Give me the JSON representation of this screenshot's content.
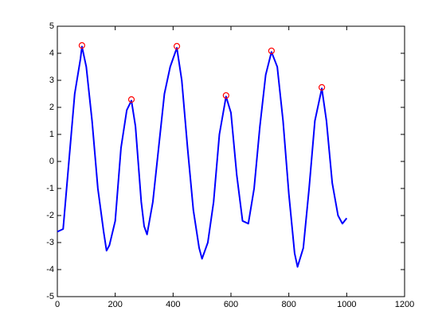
{
  "chart_data": {
    "type": "line",
    "xlim": [
      0,
      1200
    ],
    "xticks": [
      0,
      200,
      400,
      600,
      800,
      1000,
      1200
    ],
    "ylim": [
      -5,
      5
    ],
    "yticks": [
      -5,
      -4,
      -3,
      -2,
      -1,
      0,
      1,
      2,
      3,
      4,
      5
    ],
    "series": [
      {
        "style": "line",
        "color": "#0000ff",
        "x": [
          0,
          20,
          40,
          60,
          80,
          85,
          100,
          120,
          140,
          160,
          170,
          180,
          200,
          220,
          240,
          256,
          270,
          290,
          300,
          310,
          330,
          350,
          370,
          390,
          413,
          430,
          450,
          470,
          490,
          500,
          520,
          540,
          560,
          583,
          600,
          620,
          640,
          660,
          680,
          700,
          720,
          740,
          760,
          780,
          800,
          820,
          830,
          850,
          870,
          890,
          914,
          930,
          950,
          970,
          985,
          1000
        ],
        "values": [
          -2.6,
          -2.5,
          0.0,
          2.5,
          3.8,
          4.25,
          3.5,
          1.5,
          -1.0,
          -2.6,
          -3.3,
          -3.1,
          -2.2,
          0.5,
          1.9,
          2.25,
          1.3,
          -1.5,
          -2.4,
          -2.7,
          -1.5,
          0.5,
          2.5,
          3.5,
          4.2,
          3.0,
          0.5,
          -1.8,
          -3.2,
          -3.6,
          -3.0,
          -1.5,
          1.0,
          2.4,
          1.8,
          -0.5,
          -2.2,
          -2.3,
          -1.0,
          1.3,
          3.2,
          4.05,
          3.5,
          1.5,
          -1.2,
          -3.4,
          -3.9,
          -3.2,
          -1.0,
          1.5,
          2.7,
          1.5,
          -0.8,
          -2.0,
          -2.3,
          -2.1
        ]
      },
      {
        "style": "marker",
        "color": "#ff0000",
        "x": [
          85,
          256,
          413,
          583,
          740,
          914
        ],
        "values": [
          4.29,
          2.29,
          4.26,
          2.44,
          4.09,
          2.74
        ]
      }
    ]
  }
}
